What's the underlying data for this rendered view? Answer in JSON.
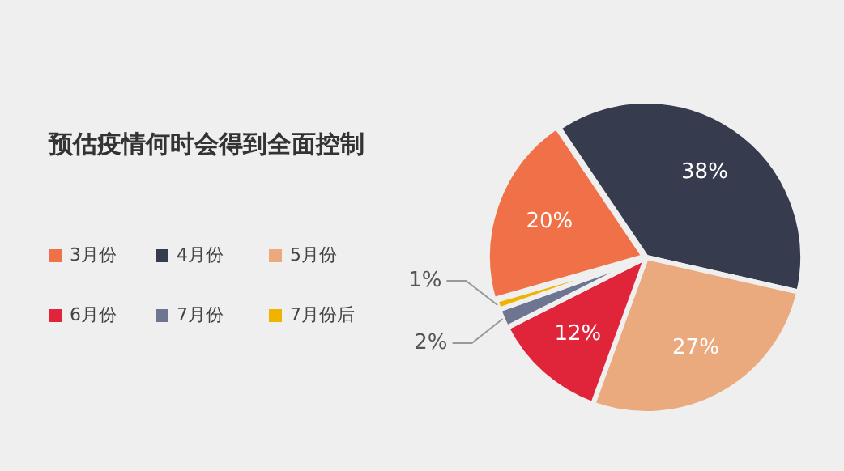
{
  "chart_data": {
    "type": "pie",
    "title": "预估疫情何时会得到全面控制",
    "categories": [
      "3月份",
      "4月份",
      "5月份",
      "6月份",
      "7月份",
      "7月份后"
    ],
    "values": [
      20,
      38,
      27,
      12,
      2,
      1
    ],
    "colors": [
      "#f07148",
      "#363b4e",
      "#eaaa7e",
      "#e0253a",
      "#6e7590",
      "#f0b400"
    ],
    "value_labels": [
      "20%",
      "38%",
      "27%",
      "12%",
      "2%",
      "1%"
    ],
    "legend": "left"
  }
}
